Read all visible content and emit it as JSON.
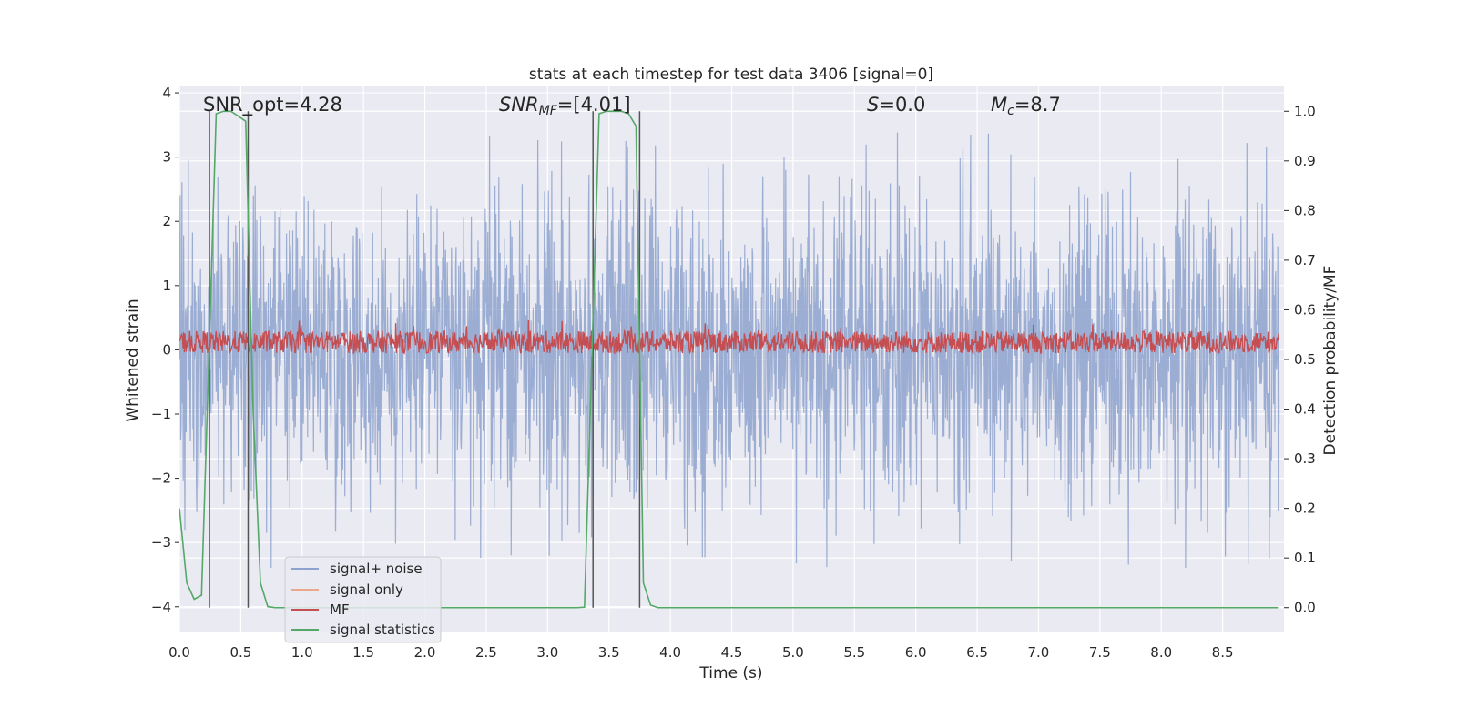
{
  "chart_data": {
    "type": "line",
    "title": "stats at each timestep for test data 3406 [signal=0]",
    "xlabel": "Time (s)",
    "ylabel": "Whitened strain",
    "ylabel_right": "Detection probability/MF",
    "xlim": [
      0,
      9.0
    ],
    "ylim": [
      -4.4,
      4.1
    ],
    "ylim_right": [
      -0.05,
      1.05
    ],
    "x_ticks": [
      "0.0",
      "0.5",
      "1.0",
      "1.5",
      "2.0",
      "2.5",
      "3.0",
      "3.5",
      "4.0",
      "4.5",
      "5.0",
      "5.5",
      "6.0",
      "6.5",
      "7.0",
      "7.5",
      "8.0",
      "8.5"
    ],
    "y_ticks": [
      "−4",
      "−3",
      "−2",
      "−1",
      "0",
      "1",
      "2",
      "3",
      "4"
    ],
    "y_ticks_right": [
      "0.0",
      "0.1",
      "0.2",
      "0.3",
      "0.4",
      "0.5",
      "0.6",
      "0.7",
      "0.8",
      "0.9",
      "1.0"
    ],
    "grid": true,
    "legend_position": "bottom-left",
    "annotations": {
      "snr_opt": "SNR_opt=4.28",
      "snr_mf_label": "SNR",
      "snr_mf_sub": "MF",
      "snr_mf_value": "=[4.01]",
      "s_label": "S",
      "s_value": "=0.0",
      "mc_label": "M",
      "mc_sub": "c",
      "mc_value": "=8.7"
    },
    "series": [
      {
        "name": "signal+ noise",
        "color": "#8da2cc",
        "kind": "noise",
        "envelope_abs": 1.9,
        "peak_max": 3.8,
        "peak_min": -4.0
      },
      {
        "name": "signal only",
        "color": "#e9a98a",
        "kind": "flat",
        "values": []
      },
      {
        "name": "MF",
        "color": "#c44e52",
        "kind": "noise",
        "axis": "right",
        "range": [
          0.52,
          0.6
        ]
      },
      {
        "name": "signal statistics",
        "color": "#55a868",
        "axis": "right",
        "x": [
          0.0,
          0.06,
          0.12,
          0.18,
          0.24,
          0.3,
          0.36,
          0.42,
          0.48,
          0.54,
          0.6,
          0.66,
          0.72,
          0.78,
          3.24,
          3.3,
          3.36,
          3.42,
          3.48,
          3.54,
          3.6,
          3.66,
          3.72,
          3.78,
          3.84,
          3.9,
          8.95
        ],
        "values": [
          0.2,
          0.05,
          0.017,
          0.025,
          0.5,
          0.995,
          1.0,
          1.0,
          0.99,
          0.98,
          0.4,
          0.05,
          0.002,
          0.0,
          0.0,
          0.001,
          0.5,
          0.995,
          1.0,
          1.0,
          1.0,
          0.995,
          0.97,
          0.05,
          0.005,
          0.0,
          0.0
        ]
      }
    ],
    "vertical_markers": [
      0.245,
      0.56,
      3.37,
      3.75
    ]
  }
}
